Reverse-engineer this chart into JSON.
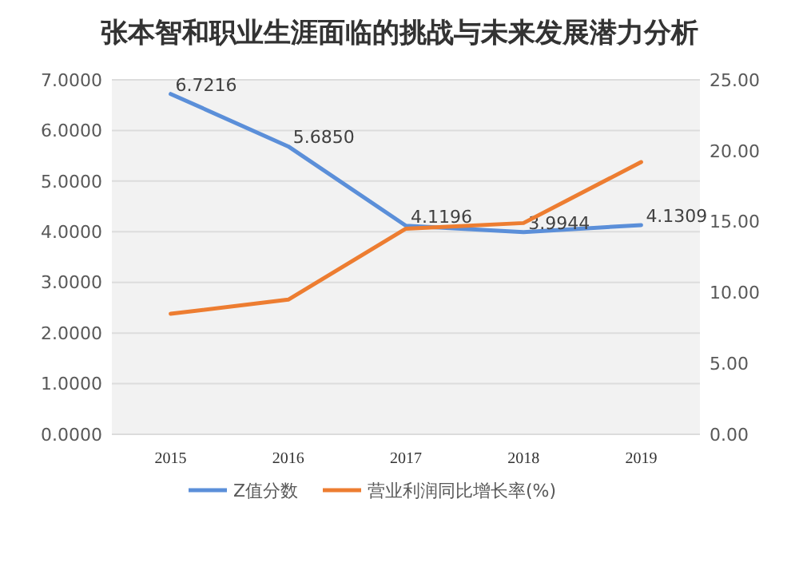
{
  "chart_data": {
    "type": "line",
    "title": "张本智和职业生涯面临的挑战与未来发展潜力分析",
    "categories": [
      "2015",
      "2016",
      "2017",
      "2018",
      "2019"
    ],
    "series": [
      {
        "name": "Z值分数",
        "color": "#5b8fd9",
        "values": [
          6.7216,
          5.685,
          4.1196,
          3.9944,
          4.1309
        ],
        "value_labels": [
          "6.7216",
          "5.6850",
          "4.1196",
          "3.9944",
          "4.1309"
        ]
      },
      {
        "name": "营业利润同比增长率(%)",
        "color": "#ed7d31",
        "axis": "y2",
        "values": [
          8.5,
          9.5,
          14.5,
          14.9,
          19.2
        ]
      }
    ],
    "ylim": [
      0,
      7
    ],
    "yticks": [
      {
        "value": 0,
        "label": "0.0000"
      },
      {
        "value": 1,
        "label": "1.0000"
      },
      {
        "value": 2,
        "label": "2.0000"
      },
      {
        "value": 3,
        "label": "3.0000"
      },
      {
        "value": 4,
        "label": "4.0000"
      },
      {
        "value": 5,
        "label": "5.0000"
      },
      {
        "value": 6,
        "label": "6.0000"
      },
      {
        "value": 7,
        "label": "7.0000"
      }
    ],
    "y2lim": [
      0,
      25
    ],
    "y2ticks": [
      {
        "value": 0,
        "label": "0.00"
      },
      {
        "value": 5,
        "label": "5.00"
      },
      {
        "value": 10,
        "label": "10.00"
      },
      {
        "value": 15,
        "label": "15.00"
      },
      {
        "value": 20,
        "label": "20.00"
      },
      {
        "value": 25,
        "label": "25.00"
      }
    ],
    "grid": "y",
    "legend": "bottom",
    "marker": "none",
    "line_style": "solid"
  }
}
